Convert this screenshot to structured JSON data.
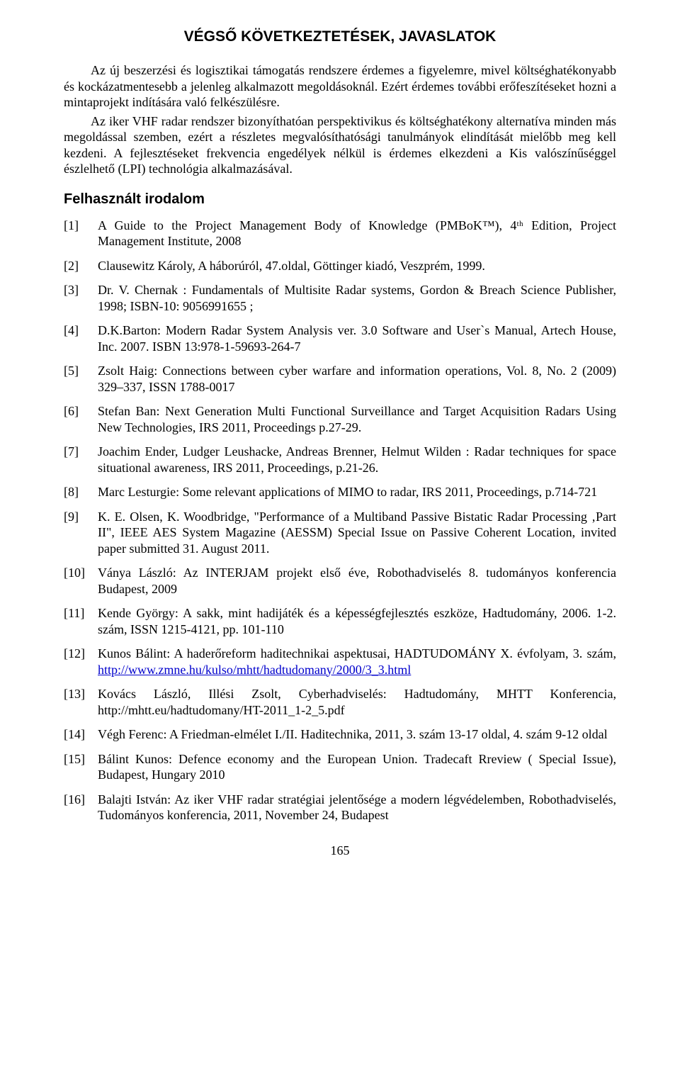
{
  "title": "VÉGSŐ KÖVETKEZTETÉSEK, JAVASLATOK",
  "para1": "Az új beszerzési és logisztikai támogatás rendszere érdemes a figyelemre, mivel költséghatékonyabb és kockázatmentesebb a jelenleg alkalmazott megoldásoknál. Ezért érdemes további erőfeszítéseket hozni a mintaprojekt indítására való felkészülésre.",
  "para2": "Az iker VHF radar rendszer bizonyíthatóan perspektivikus és költséghatékony alternatíva minden más megoldással szemben, ezért a részletes megvalósíthatósági tanulmányok elindítását mielőbb meg kell kezdeni. A fejlesztéseket frekvencia engedélyek nélkül is érdemes elkezdeni a Kis valószínűséggel észlelhető (LPI) technológia alkalmazásával.",
  "sectionHeading": "Felhasznált irodalom",
  "refs": [
    {
      "n": "[1]",
      "text": "A Guide to the Project Management Body of Knowledge (PMBoK™), 4ᵗʰ Edition, Project Management Institute, 2008"
    },
    {
      "n": "[2]",
      "text": "Clausewitz Károly, A háborúról, 47.oldal, Göttinger kiadó, Veszprém, 1999."
    },
    {
      "n": "[3]",
      "text": "Dr. V. Chernak : Fundamentals of Multisite Radar systems, Gordon & Breach Science Publisher, 1998; ISBN-10: 9056991655 ;"
    },
    {
      "n": "[4]",
      "text": "D.K.Barton: Modern Radar System Analysis ver. 3.0 Software and User`s Manual, Artech House, Inc. 2007. ISBN 13:978-1-59693-264-7"
    },
    {
      "n": "[5]",
      "text": "Zsolt Haig: Connections between cyber warfare and information operations, Vol. 8, No. 2 (2009) 329–337, ISSN 1788-0017"
    },
    {
      "n": "[6]",
      "text": "Stefan Ban: Next Generation Multi Functional Surveillance and Target Acquisition Radars Using New Technologies, IRS 2011, Proceedings p.27-29."
    },
    {
      "n": "[7]",
      "text": "Joachim Ender, Ludger Leushacke, Andreas Brenner, Helmut Wilden : Radar techniques for space situational awareness, IRS 2011, Proceedings, p.21-26."
    },
    {
      "n": "[8]",
      "text": "Marc Lesturgie: Some relevant applications of MIMO to radar, IRS 2011, Proceedings, p.714-721"
    },
    {
      "n": "[9]",
      "text": "K. E. Olsen, K. Woodbridge, \"Performance of a Multiband Passive Bistatic Radar Processing ‚Part II\", IEEE AES System Magazine (AESSM) Special Issue on Passive Coherent Location, invited paper submitted 31. August 2011."
    },
    {
      "n": "[10]",
      "text": "Ványa László: Az INTERJAM projekt első éve, Robothadviselés 8. tudományos konferencia Budapest, 2009"
    },
    {
      "n": "[11]",
      "text": "Kende György: A sakk, mint hadijáték és a képességfejlesztés eszköze, Hadtudomány, 2006. 1-2. szám, ISSN 1215-4121, pp. 101-110"
    },
    {
      "n": "[12]",
      "textPre": "Kunos Bálint: A haderőreform haditechnikai aspektusai, HADTUDOMÁNY X. évfolyam, 3. szám, ",
      "link": "http://www.zmne.hu/kulso/mhtt/hadtudomany/2000/3_3.html"
    },
    {
      "n": "[13]",
      "text": "Kovács László, Illési Zsolt, Cyberhadviselés: Hadtudomány, MHTT Konferencia, http://mhtt.eu/hadtudomany/HT-2011_1-2_5.pdf"
    },
    {
      "n": "[14]",
      "text": "Végh Ferenc: A Friedman-elmélet I./II. Haditechnika, 2011, 3. szám 13-17 oldal, 4. szám 9-12 oldal"
    },
    {
      "n": "[15]",
      "text": "Bálint Kunos: Defence economy and the European Union. Tradecaft Rreview ( Special Issue), Budapest, Hungary 2010"
    },
    {
      "n": "[16]",
      "text": "Balajti István: Az iker VHF radar stratégiai jelentősége a modern légvédelemben, Robothadviselés, Tudományos konferencia, 2011, November 24, Budapest"
    }
  ],
  "pageNumber": "165",
  "colors": {
    "text": "#000000",
    "background": "#ffffff",
    "link": "#0000cc"
  }
}
